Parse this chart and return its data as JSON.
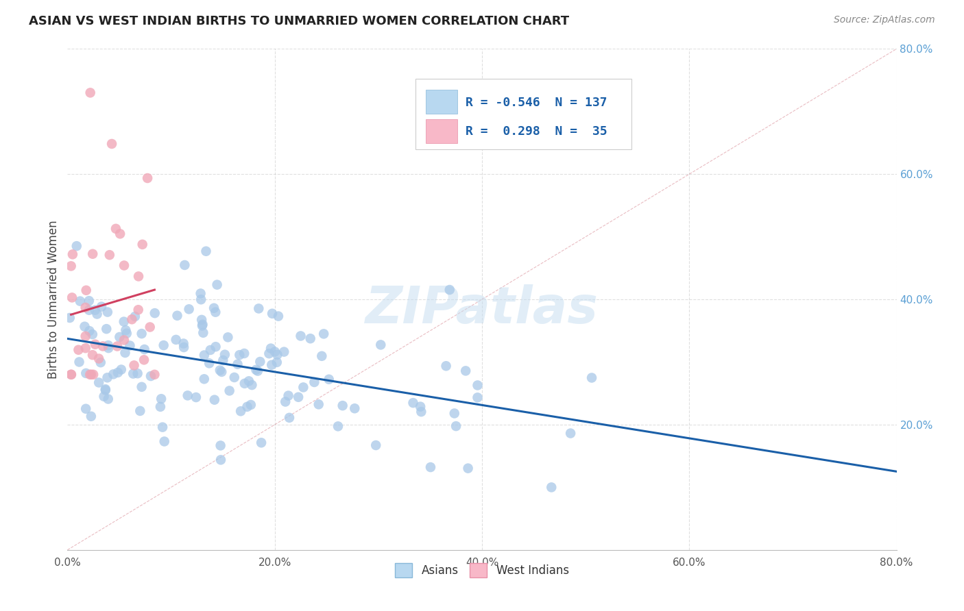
{
  "title": "ASIAN VS WEST INDIAN BIRTHS TO UNMARRIED WOMEN CORRELATION CHART",
  "source": "Source: ZipAtlas.com",
  "ylabel": "Births to Unmarried Women",
  "xlim": [
    0.0,
    0.8
  ],
  "ylim": [
    0.0,
    0.8
  ],
  "watermark": "ZIPatlas",
  "legend_R_asian": "-0.546",
  "legend_N_asian": "137",
  "legend_R_westindian": "0.298",
  "legend_N_westindian": "35",
  "asian_color": "#a8c8e8",
  "westindian_color": "#f0a8b8",
  "asian_line_color": "#1a5fa8",
  "westindian_line_color": "#d04060",
  "grid_color": "#d8d8d8",
  "title_color": "#222222",
  "source_color": "#888888",
  "tick_color_x": "#555555",
  "tick_color_y": "#5a9fd4",
  "asian_seed": 12,
  "wi_seed": 7
}
